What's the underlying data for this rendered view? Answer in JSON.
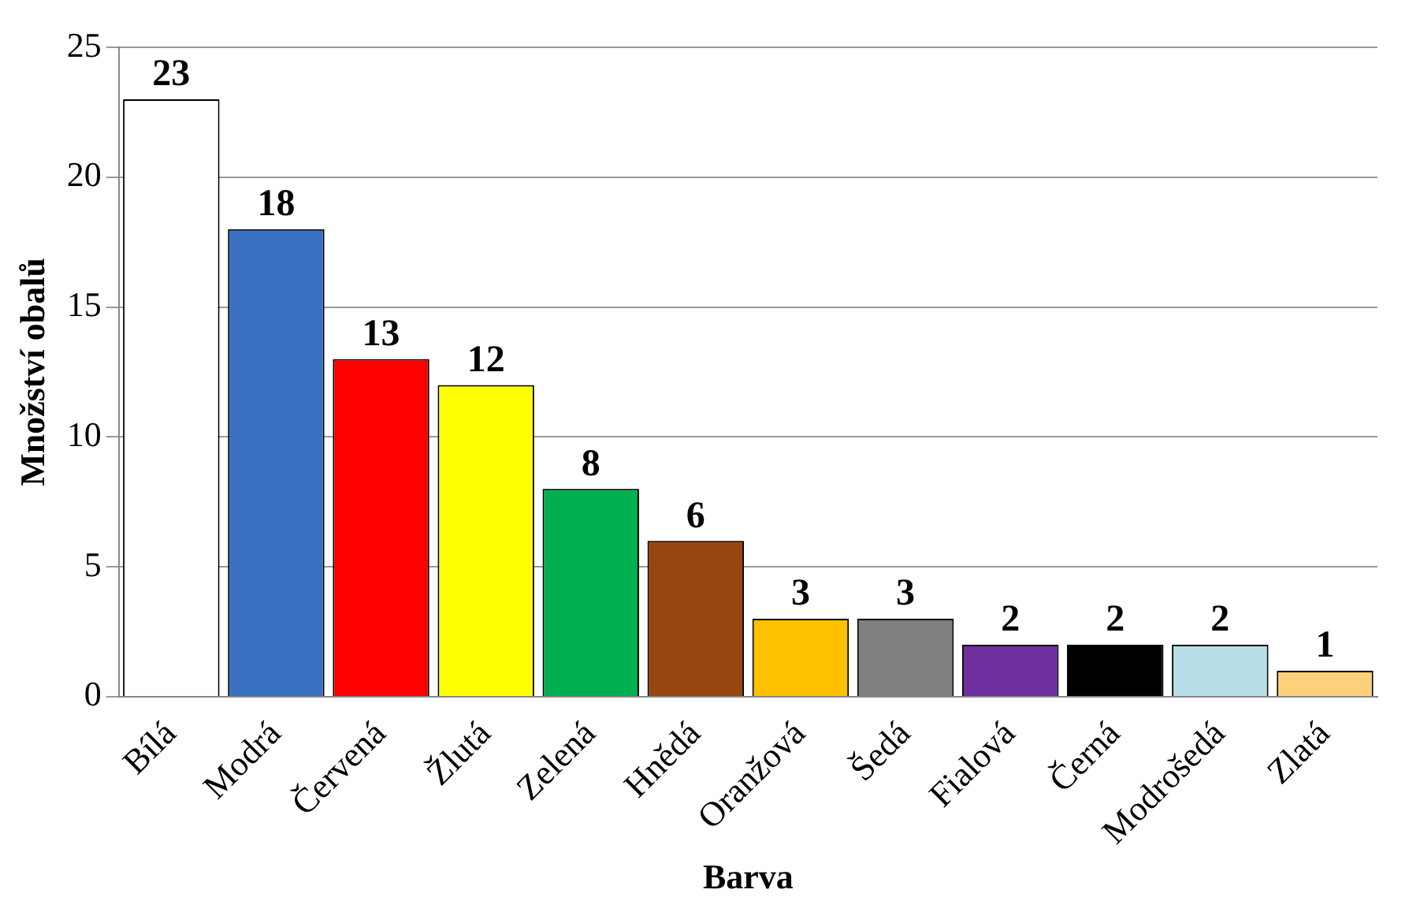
{
  "chart_data": {
    "type": "bar",
    "xlabel": "Barva",
    "ylabel": "Množství obalů",
    "categories": [
      "Bílá",
      "Modrá",
      "Červená",
      "Žlutá",
      "Zelená",
      "Hnědá",
      "Oranžová",
      "Šedá",
      "Fialová",
      "Černá",
      "Modrošedá",
      "Zlatá"
    ],
    "values": [
      23,
      18,
      13,
      12,
      8,
      6,
      3,
      3,
      2,
      2,
      2,
      1
    ],
    "colors": [
      "#ffffff",
      "#3a70c0",
      "#ff0000",
      "#ffff00",
      "#00b050",
      "#974610",
      "#ffc000",
      "#808080",
      "#7030a0",
      "#000000",
      "#b7dee8",
      "#fcd17a"
    ],
    "ylim": [
      0,
      25
    ],
    "yticks": [
      0,
      5,
      10,
      15,
      20,
      25
    ],
    "grid": "y",
    "data_labels": true
  }
}
